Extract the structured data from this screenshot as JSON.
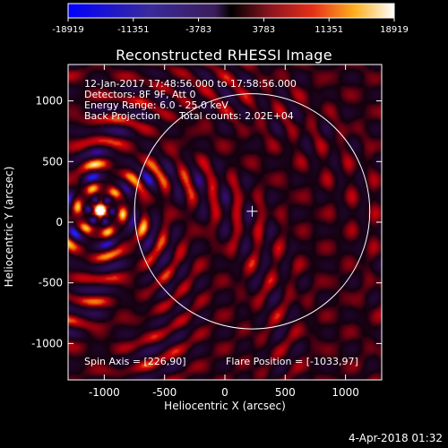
{
  "title": "Reconstructed RHESSI Image",
  "colorbar": {
    "ticks": [
      "-18919",
      "-11351",
      "-3783",
      "3783",
      "11351",
      "18919"
    ]
  },
  "info": {
    "line1": "12-Jan-2017 17:48:56.000 to 17:58:56.000",
    "line2": "Detectors: 8F 9F, Att 0",
    "line3": "Energy Range: 6.0 - 25.0 keV",
    "line4a": "Back Projection",
    "line4b": "Total counts: 2.02E+04",
    "spin_axis": "Spin Axis = [226,90]",
    "flare_position": "Flare Position = [-1033,97]"
  },
  "xaxis_label": "Heliocentric X (arcsec)",
  "yaxis_label": "Heliocentric Y (arcsec)",
  "timestamp": "4-Apr-2018 01:32",
  "chart_data": {
    "type": "heatmap",
    "title": "Reconstructed RHESSI Image",
    "xlabel": "Heliocentric X (arcsec)",
    "ylabel": "Heliocentric Y (arcsec)",
    "xlim": [
      -1300,
      1300
    ],
    "ylim": [
      -1300,
      1300
    ],
    "xticks": [
      -1000,
      -500,
      0,
      500,
      1000
    ],
    "yticks": [
      -1000,
      -500,
      0,
      500,
      1000
    ],
    "xtick_labels": [
      "-1000",
      "-500",
      "0",
      "500",
      "1000"
    ],
    "ytick_labels": [
      "-1000",
      "-500",
      "0",
      "500",
      "1000"
    ],
    "colorbar_range": [
      -18919,
      18919
    ],
    "source_peak": [
      -1033,
      97
    ],
    "crosshair_center": [
      226,
      90
    ],
    "solar_limb_radius": 975
  },
  "colors": {
    "background": "#000000",
    "foreground": "#ffffff"
  }
}
